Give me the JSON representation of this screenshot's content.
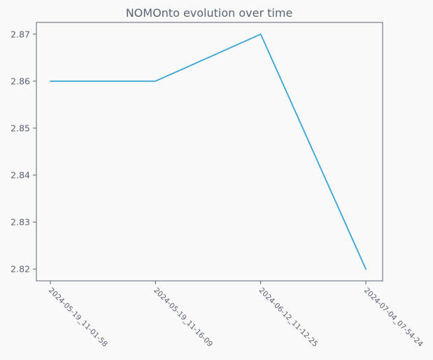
{
  "chart_data": {
    "type": "line",
    "title": "NOMOnto evolution over time",
    "xlabel": "",
    "ylabel": "",
    "categories": [
      "2024-05-19_11-01-58",
      "2024-05-19_11-16-09",
      "2024-06-12_11-12-25",
      "2024-07-04_07-54-24"
    ],
    "series": [
      {
        "values": [
          2.86,
          2.86,
          2.87,
          2.82
        ]
      }
    ],
    "yticks": [
      "2.82",
      "2.83",
      "2.84",
      "2.85",
      "2.86",
      "2.87"
    ],
    "ylim": [
      2.8175,
      2.8725
    ],
    "grid": false,
    "colors": {
      "line": "#3ba3d4",
      "axes": "#5a6473",
      "plot_background": "#f9f9f9",
      "figure_background": "#f9f9f9"
    }
  }
}
